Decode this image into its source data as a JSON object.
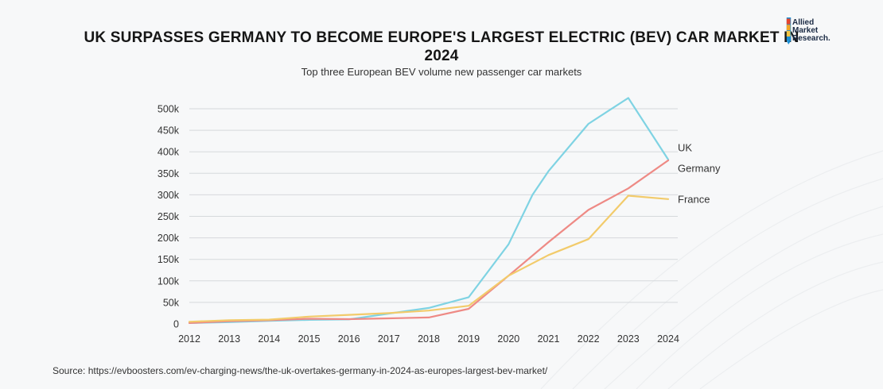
{
  "header": {
    "title": "UK SURPASSES GERMANY TO BECOME EUROPE'S LARGEST ELECTRIC (BEV) CAR MARKET IN 2024",
    "subtitle": "Top three European BEV volume new passenger car markets"
  },
  "logo": {
    "line1": "Allied",
    "line2": "Market",
    "line3": "Research.",
    "colors": [
      "#e8452c",
      "#f5a623",
      "#1a8fd6"
    ]
  },
  "footer": {
    "source": "Source: https://evboosters.com/ev-charging-news/the-uk-overtakes-germany-in-2024-as-europes-largest-bev-market/"
  },
  "chart_data": {
    "type": "line",
    "title": "UK SURPASSES GERMANY TO BECOME EUROPE'S LARGEST ELECTRIC (BEV) CAR MARKET IN 2024",
    "subtitle": "Top three European BEV volume new passenger car markets",
    "xlabel": "",
    "ylabel": "",
    "x": [
      "2012",
      "2013",
      "2014",
      "2015",
      "2016",
      "2017",
      "2018",
      "2019",
      "2020",
      "2021",
      "2022",
      "2023",
      "2024"
    ],
    "ylim": [
      0,
      500000
    ],
    "yticks": [
      0,
      50000,
      100000,
      150000,
      200000,
      250000,
      300000,
      350000,
      400000,
      450000,
      500000
    ],
    "ytick_labels": [
      "0",
      "50k",
      "100k",
      "150k",
      "200k",
      "250k",
      "300k",
      "350k",
      "400k",
      "450k",
      "500k"
    ],
    "grid": "horizontal",
    "legend": "line-end labels",
    "series": [
      {
        "name": "UK",
        "color": "#7fd3e3",
        "points": [
          [
            2012,
            2000
          ],
          [
            2013,
            4000
          ],
          [
            2014,
            7000
          ],
          [
            2015,
            9500
          ],
          [
            2016,
            10500
          ],
          [
            2017,
            24000
          ],
          [
            2018,
            37000
          ],
          [
            2019,
            62000
          ],
          [
            2020,
            185000
          ],
          [
            2020.6,
            300000
          ],
          [
            2021,
            355000
          ],
          [
            2022,
            465000
          ],
          [
            2023,
            525000
          ],
          [
            2024,
            382000
          ]
        ]
      },
      {
        "name": "Germany",
        "color": "#ee8a85",
        "points": [
          [
            2012,
            2000
          ],
          [
            2013,
            6000
          ],
          [
            2014,
            8500
          ],
          [
            2015,
            12000
          ],
          [
            2016,
            11000
          ],
          [
            2017,
            13000
          ],
          [
            2018,
            15000
          ],
          [
            2019,
            35000
          ],
          [
            2020,
            112000
          ],
          [
            2021,
            190000
          ],
          [
            2022,
            265000
          ],
          [
            2023,
            315000
          ],
          [
            2024,
            380000
          ]
        ]
      },
      {
        "name": "France",
        "color": "#f2cb6b",
        "points": [
          [
            2012,
            5000
          ],
          [
            2013,
            8500
          ],
          [
            2014,
            10000
          ],
          [
            2015,
            17000
          ],
          [
            2016,
            21000
          ],
          [
            2017,
            25000
          ],
          [
            2018,
            31000
          ],
          [
            2019,
            42000
          ],
          [
            2020,
            112000
          ],
          [
            2021,
            160000
          ],
          [
            2022,
            197000
          ],
          [
            2023,
            298000
          ],
          [
            2024,
            290000
          ]
        ]
      }
    ],
    "series_label_values": [
      [
        2024,
        410000
      ],
      [
        2024,
        362000
      ],
      [
        2024,
        290000
      ]
    ]
  }
}
